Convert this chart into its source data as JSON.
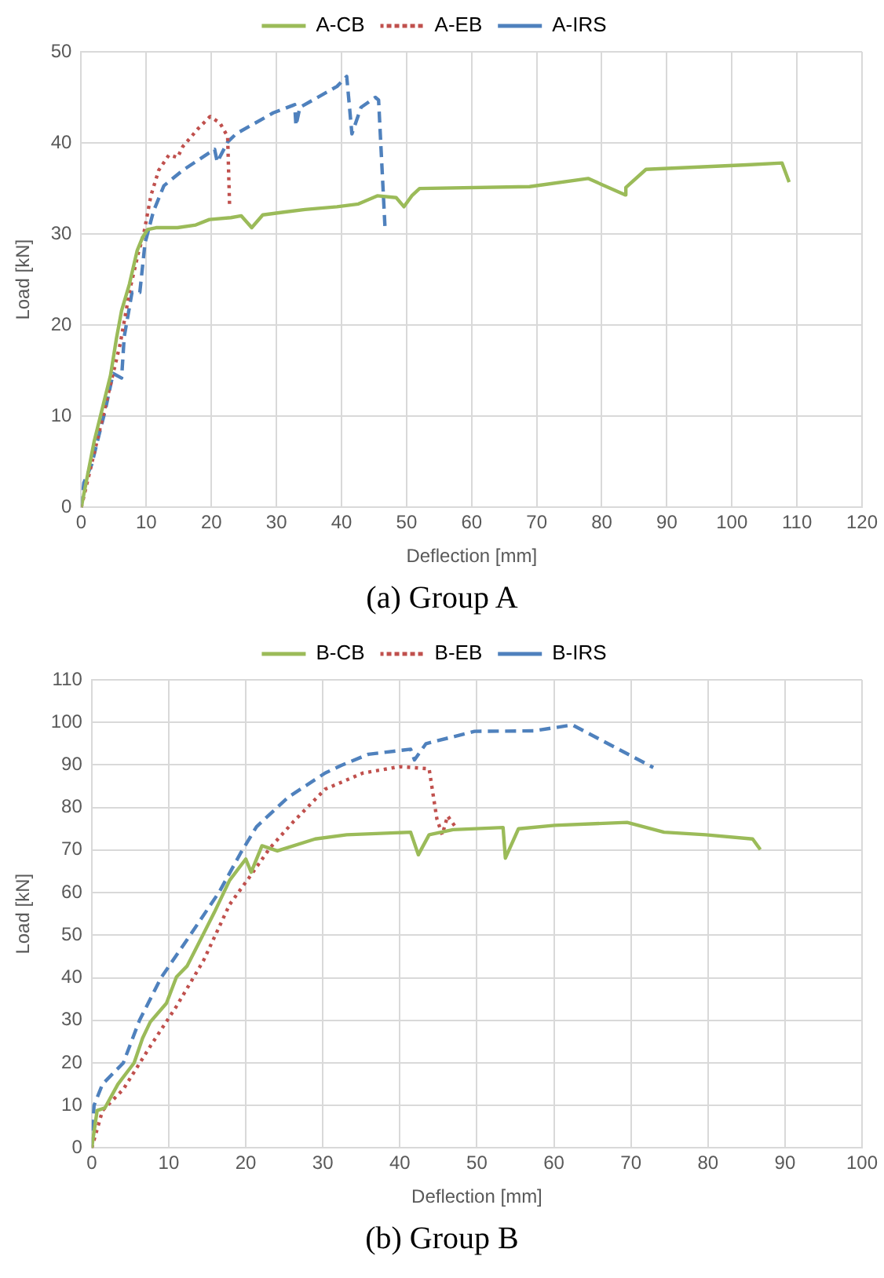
{
  "chart_data": [
    {
      "type": "line",
      "xlabel": "Deflection [mm]",
      "ylabel": "Load [kN]",
      "annotations": [
        "(a) Group A"
      ],
      "legend": "top",
      "grid": true,
      "marker": "none",
      "xlim": [
        0,
        120
      ],
      "ylim": [
        0,
        50
      ],
      "xticks": [
        0,
        10,
        20,
        30,
        40,
        50,
        60,
        70,
        80,
        90,
        100,
        110,
        120
      ],
      "yticks": [
        0,
        10,
        20,
        30,
        40,
        50
      ],
      "series": [
        {
          "name": "A-CB",
          "color": "#9bbb59",
          "line_style": "solid",
          "x": [
            0,
            2,
            4.5,
            5.4,
            6.2,
            7.4,
            8.6,
            9.4,
            10.2,
            11.5,
            14.8,
            17.6,
            19.7,
            23,
            24.6,
            26.2,
            27.9,
            31.1,
            34.4,
            39.3,
            42.6,
            45.5,
            48.4,
            49.6,
            50.8,
            52,
            68.9,
            77.9,
            83.6,
            83.7,
            86.8,
            102.3,
            107.7,
            108.8
          ],
          "values": [
            0,
            7.3,
            14.5,
            18.5,
            21.6,
            24.5,
            28.2,
            29.6,
            30.5,
            30.7,
            30.7,
            31,
            31.6,
            31.8,
            32,
            30.7,
            32.1,
            32.4,
            32.7,
            33,
            33.3,
            34.2,
            34,
            33,
            34.2,
            35,
            35.2,
            36.1,
            34.3,
            35.1,
            37.1,
            37.6,
            37.8,
            35.7
          ]
        },
        {
          "name": "A-EB",
          "color": "#c0504d",
          "line_style": "dotted",
          "x": [
            0,
            1.5,
            3,
            4.5,
            6,
            7.5,
            8.8,
            9.6,
            10.7,
            11.9,
            13.5,
            14.8,
            15.6,
            18,
            19.8,
            21.3,
            22.5,
            22.8
          ],
          "values": [
            0,
            4.5,
            9,
            13.5,
            18,
            24,
            28,
            30,
            34.2,
            37,
            38.7,
            38.4,
            39.6,
            41.6,
            42.9,
            42.2,
            40.7,
            33
          ]
        },
        {
          "name": "A-IRS",
          "color": "#4f81bd",
          "line_style": "dashed",
          "x": [
            0,
            0.4,
            1.6,
            2.5,
            3.7,
            4.9,
            6.2,
            6.6,
            7.8,
            9,
            9.8,
            11.1,
            12.7,
            15.6,
            20.5,
            20.9,
            22.5,
            23.8,
            29.5,
            32.8,
            33,
            33.6,
            39.3,
            40.8,
            41.6,
            43,
            45.2,
            45.7,
            46.7
          ],
          "values": [
            0,
            2.7,
            4.7,
            7.3,
            10.7,
            14.7,
            14.2,
            18.7,
            23.6,
            23.6,
            29,
            32.5,
            35.3,
            37,
            39.3,
            37.9,
            40.1,
            41,
            43.3,
            44.2,
            41.9,
            43.9,
            46.2,
            47.3,
            41,
            43.9,
            45,
            44.7,
            30.5
          ]
        }
      ]
    },
    {
      "type": "line",
      "xlabel": "Deflection [mm]",
      "ylabel": "Load [kN]",
      "annotations": [
        "(b) Group B"
      ],
      "legend": "top",
      "grid": true,
      "marker": "none",
      "xlim": [
        0,
        100
      ],
      "ylim": [
        0,
        110
      ],
      "xticks": [
        0,
        10,
        20,
        30,
        40,
        50,
        60,
        70,
        80,
        90,
        100
      ],
      "yticks": [
        0,
        10,
        20,
        30,
        40,
        50,
        60,
        70,
        80,
        90,
        100,
        110
      ],
      "series": [
        {
          "name": "B-CB",
          "color": "#9bbb59",
          "line_style": "solid",
          "x": [
            0,
            0.7,
            1.7,
            3.4,
            5.5,
            6.6,
            7.6,
            9.7,
            11,
            12.4,
            13.8,
            15.9,
            17.9,
            20,
            20.7,
            22.1,
            24.1,
            29,
            33.1,
            41.4,
            42.4,
            43.8,
            46.9,
            53.4,
            53.7,
            55.4,
            60.1,
            69.5,
            74.3,
            79.7,
            85.8,
            86.8
          ],
          "values": [
            0,
            8.8,
            9.4,
            15,
            20,
            25.8,
            29.6,
            34,
            40.2,
            42.8,
            47.8,
            55.3,
            62.9,
            67.9,
            64.8,
            71,
            69.8,
            72.6,
            73.6,
            74.2,
            68.9,
            73.6,
            74.8,
            75.3,
            68.1,
            75,
            75.8,
            76.5,
            74.2,
            73.6,
            72.6,
            70.1
          ]
        },
        {
          "name": "B-EB",
          "color": "#c0504d",
          "line_style": "dotted",
          "x": [
            0,
            1.4,
            4.1,
            7.6,
            11,
            14.5,
            17.9,
            20.7,
            23.1,
            26.2,
            30.3,
            35.2,
            40,
            43.8,
            44.8,
            45.5,
            46.2,
            47.2
          ],
          "values": [
            0,
            8.8,
            13.8,
            23.9,
            33.3,
            44,
            57.2,
            64.2,
            70.4,
            76.7,
            84.3,
            88.1,
            89.6,
            89.1,
            77.4,
            73.6,
            78,
            75.5
          ]
        },
        {
          "name": "B-IRS",
          "color": "#4f81bd",
          "line_style": "dashed",
          "x": [
            0,
            0.3,
            1.4,
            4.1,
            6.2,
            9,
            12.4,
            16.6,
            19.3,
            21.4,
            25.5,
            30.3,
            32.4,
            35.9,
            41.4,
            41.9,
            43.4,
            49.7,
            57.4,
            62.4,
            72.9
          ],
          "values": [
            0,
            10,
            15,
            20,
            30,
            40,
            49,
            60.3,
            69.2,
            75.5,
            82.4,
            88.1,
            89.9,
            92.5,
            93.7,
            91.2,
            95,
            97.9,
            98,
            99.4,
            89.4
          ]
        }
      ]
    }
  ]
}
